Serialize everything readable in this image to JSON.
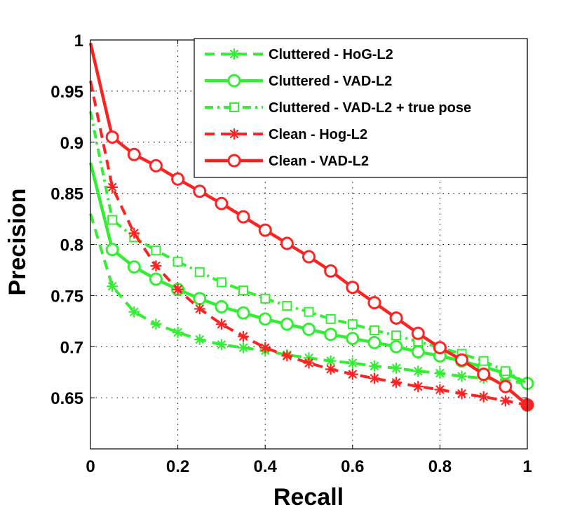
{
  "chart_data": {
    "type": "line",
    "title": "",
    "xlabel": "Recall",
    "ylabel": "Precision",
    "xlim": [
      0,
      1
    ],
    "ylim": [
      0.6,
      1
    ],
    "grid": true,
    "legend_position": "top-right",
    "x_ticks": [
      "0",
      "0.2",
      "0.4",
      "0.6",
      "0.8",
      "1"
    ],
    "y_ticks": [
      "1",
      "0.95",
      "0.9",
      "0.85",
      "0.8",
      "0.75",
      "0.7",
      "0.65"
    ],
    "series": [
      {
        "name": "Cluttered - HoG-L2",
        "color": "#33ee33",
        "style": "dashed",
        "marker": "asterisk",
        "x": [
          0.05,
          0.1,
          0.15,
          0.2,
          0.25,
          0.3,
          0.35,
          0.4,
          0.45,
          0.5,
          0.55,
          0.6,
          0.65,
          0.7,
          0.75,
          0.8,
          0.85,
          0.9,
          0.95
        ],
        "values": [
          0.759,
          0.734,
          0.722,
          0.714,
          0.707,
          0.702,
          0.699,
          0.696,
          0.692,
          0.689,
          0.686,
          0.684,
          0.681,
          0.679,
          0.676,
          0.674,
          0.671,
          0.669,
          0.667
        ],
        "start": [
          0.0,
          0.83
        ],
        "end": [
          1.0,
          0.664
        ]
      },
      {
        "name": "Cluttered - VAD-L2",
        "color": "#33ee33",
        "style": "solid",
        "marker": "circle",
        "x": [
          0.05,
          0.1,
          0.15,
          0.2,
          0.25,
          0.3,
          0.35,
          0.4,
          0.45,
          0.5,
          0.55,
          0.6,
          0.65,
          0.7,
          0.75,
          0.8,
          0.85,
          0.9,
          0.95,
          1.0
        ],
        "values": [
          0.795,
          0.778,
          0.766,
          0.756,
          0.747,
          0.739,
          0.733,
          0.727,
          0.722,
          0.717,
          0.712,
          0.708,
          0.704,
          0.7,
          0.695,
          0.691,
          0.686,
          0.68,
          0.674,
          0.664
        ],
        "start": [
          0.0,
          0.88
        ]
      },
      {
        "name": "Cluttered - VAD-L2 + true pose",
        "color": "#33ee33",
        "style": "dashdot",
        "marker": "square",
        "x": [
          0.05,
          0.1,
          0.15,
          0.2,
          0.25,
          0.3,
          0.35,
          0.4,
          0.45,
          0.5,
          0.55,
          0.6,
          0.65,
          0.7,
          0.75,
          0.8,
          0.85,
          0.9,
          0.95
        ],
        "values": [
          0.824,
          0.807,
          0.794,
          0.783,
          0.773,
          0.763,
          0.755,
          0.747,
          0.74,
          0.734,
          0.727,
          0.722,
          0.716,
          0.711,
          0.705,
          0.699,
          0.693,
          0.686,
          0.676
        ],
        "start": [
          0.0,
          0.93
        ],
        "end": [
          1.0,
          0.664
        ]
      },
      {
        "name": "Clean - Hog-L2",
        "color": "#ff2222",
        "style": "dashed",
        "marker": "asterisk",
        "x": [
          0.05,
          0.1,
          0.15,
          0.2,
          0.25,
          0.3,
          0.35,
          0.4,
          0.45,
          0.5,
          0.55,
          0.6,
          0.65,
          0.7,
          0.75,
          0.8,
          0.85,
          0.9,
          0.95
        ],
        "values": [
          0.856,
          0.811,
          0.779,
          0.756,
          0.737,
          0.722,
          0.71,
          0.699,
          0.691,
          0.684,
          0.678,
          0.673,
          0.669,
          0.665,
          0.661,
          0.658,
          0.654,
          0.651,
          0.647
        ],
        "start": [
          0.0,
          0.96
        ],
        "end": [
          1.0,
          0.643
        ]
      },
      {
        "name": "Clean - VAD-L2",
        "color": "#ff2222",
        "style": "solid",
        "marker": "circle",
        "x": [
          0.05,
          0.1,
          0.15,
          0.2,
          0.25,
          0.3,
          0.35,
          0.4,
          0.45,
          0.5,
          0.55,
          0.6,
          0.65,
          0.7,
          0.75,
          0.8,
          0.85,
          0.9,
          0.95,
          1.0
        ],
        "values": [
          0.905,
          0.888,
          0.877,
          0.864,
          0.852,
          0.84,
          0.827,
          0.814,
          0.801,
          0.788,
          0.774,
          0.758,
          0.743,
          0.728,
          0.713,
          0.699,
          0.687,
          0.673,
          0.661,
          0.643
        ],
        "start": [
          0.0,
          0.997
        ]
      }
    ]
  }
}
